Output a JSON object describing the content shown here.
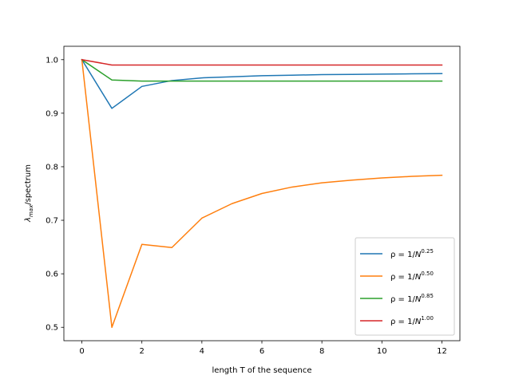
{
  "chart_data": {
    "type": "line",
    "title": "",
    "xlabel": "length T of the sequence",
    "ylabel": "λ_max/spectrum",
    "xlim": [
      -0.6,
      12.6
    ],
    "ylim": [
      0.475,
      1.025
    ],
    "x_ticks": [
      "0",
      "2",
      "4",
      "6",
      "8",
      "10",
      "12"
    ],
    "y_ticks": [
      "0.5",
      "0.6",
      "0.7",
      "0.8",
      "0.9",
      "1.0"
    ],
    "grid": false,
    "legend_position": "lower-right",
    "x": [
      0,
      1,
      2,
      3,
      4,
      5,
      6,
      7,
      8,
      9,
      10,
      11,
      12
    ],
    "series": [
      {
        "name": "ρ = 1/N^0.25",
        "name_base": "ρ = 1/",
        "name_var": "N",
        "name_exp": "0.25",
        "color": "#1f77b4",
        "values": [
          1.0,
          0.909,
          0.95,
          0.961,
          0.966,
          0.968,
          0.97,
          0.971,
          0.972,
          0.9725,
          0.973,
          0.9735,
          0.974
        ]
      },
      {
        "name": "ρ = 1/N^0.50",
        "name_base": "ρ = 1/",
        "name_var": "N",
        "name_exp": "0.50",
        "color": "#ff7f0e",
        "values": [
          1.0,
          0.5,
          0.655,
          0.649,
          0.704,
          0.731,
          0.75,
          0.762,
          0.77,
          0.775,
          0.779,
          0.782,
          0.784
        ]
      },
      {
        "name": "ρ = 1/N^0.85",
        "name_base": "ρ = 1/",
        "name_var": "N",
        "name_exp": "0.85",
        "color": "#2ca02c",
        "values": [
          1.0,
          0.962,
          0.96,
          0.96,
          0.96,
          0.96,
          0.96,
          0.96,
          0.96,
          0.96,
          0.96,
          0.96,
          0.96
        ]
      },
      {
        "name": "ρ = 1/N^1.00",
        "name_base": "ρ = 1/",
        "name_var": "N",
        "name_exp": "1.00",
        "color": "#d62728",
        "values": [
          1.0,
          0.99,
          0.99,
          0.99,
          0.99,
          0.99,
          0.99,
          0.99,
          0.99,
          0.99,
          0.99,
          0.99,
          0.99
        ]
      }
    ]
  }
}
